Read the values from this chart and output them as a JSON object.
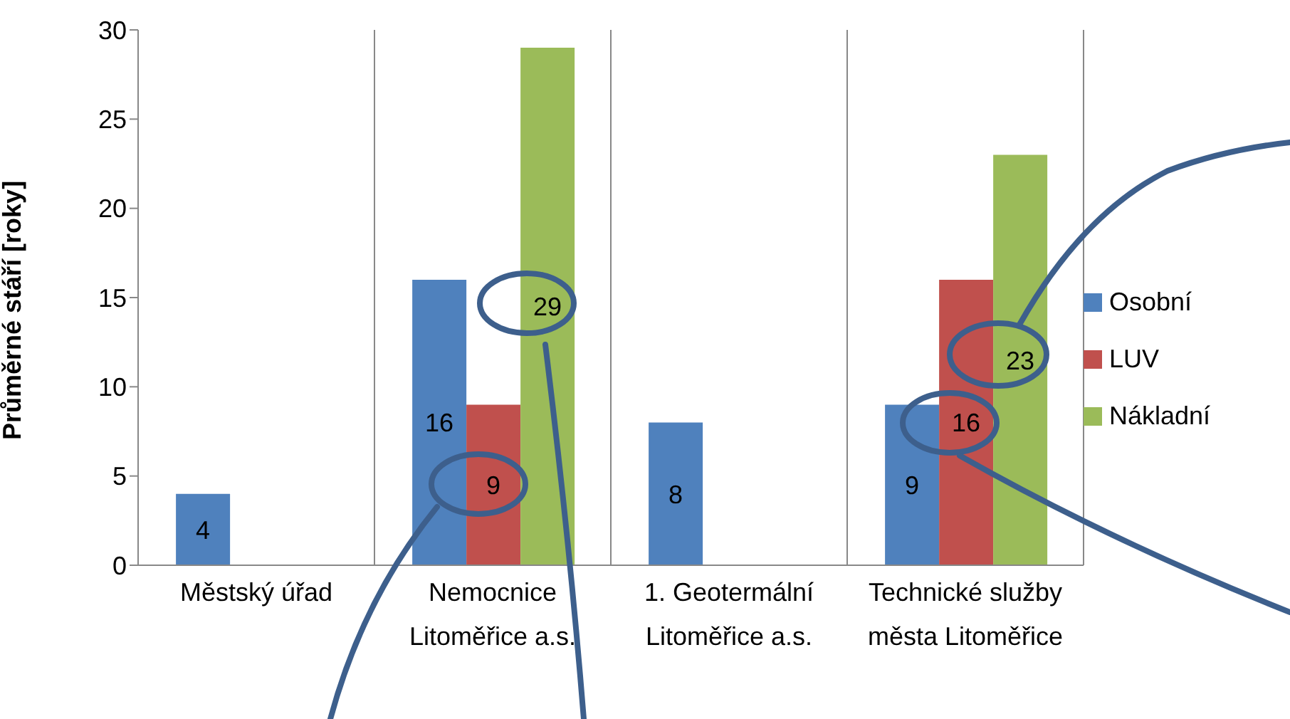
{
  "chart_data": {
    "type": "bar",
    "ylabel": "Průměrné stáří [roky]",
    "categories": [
      "Městský úřad",
      "Nemocnice Litoměřice a.s.",
      "1. Geotermální Litoměřice a.s.",
      "Technické služby města Litoměřice"
    ],
    "series": [
      {
        "name": "Osobní",
        "color": "#4f81bd",
        "values": [
          4,
          16,
          8,
          9
        ]
      },
      {
        "name": "LUV",
        "color": "#c0504d",
        "values": [
          null,
          9,
          null,
          16
        ]
      },
      {
        "name": "Nákladní",
        "color": "#9bbb59",
        "values": [
          null,
          29,
          null,
          23
        ]
      }
    ],
    "ylim": [
      0,
      30
    ],
    "yticks": [
      0,
      5,
      10,
      15,
      20,
      25,
      30
    ],
    "grid": "x",
    "legend": "right",
    "data_labels": true
  }
}
